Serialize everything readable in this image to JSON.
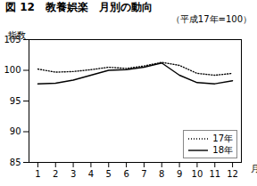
{
  "chart_data": {
    "type": "line",
    "title": "図 12　教養娯楽　月別の動向",
    "subtitle": "（平成17年=100）",
    "x_label": "月",
    "y_label": "指数",
    "x": [
      1,
      2,
      3,
      4,
      5,
      6,
      7,
      8,
      9,
      10,
      11,
      12
    ],
    "series": [
      {
        "name": "17年",
        "color": "#000000",
        "line_style": "dotted",
        "values": [
          100.2,
          99.7,
          99.8,
          100.1,
          100.5,
          100.3,
          100.7,
          101.3,
          100.8,
          99.5,
          99.2,
          99.5
        ]
      },
      {
        "name": "18年",
        "color": "#000000",
        "line_style": "solid",
        "values": [
          97.8,
          97.9,
          98.4,
          99.2,
          100.0,
          100.1,
          100.5,
          101.2,
          99.2,
          98.0,
          97.8,
          98.3
        ]
      }
    ],
    "xlim": [
      0.5,
      12.5
    ],
    "xticks": [
      1,
      2,
      3,
      4,
      5,
      6,
      7,
      8,
      9,
      10,
      11,
      12
    ],
    "ylim": [
      85,
      105
    ],
    "yticks": [
      85,
      90,
      95,
      100,
      105
    ],
    "grid": false,
    "legend": "lower right"
  }
}
